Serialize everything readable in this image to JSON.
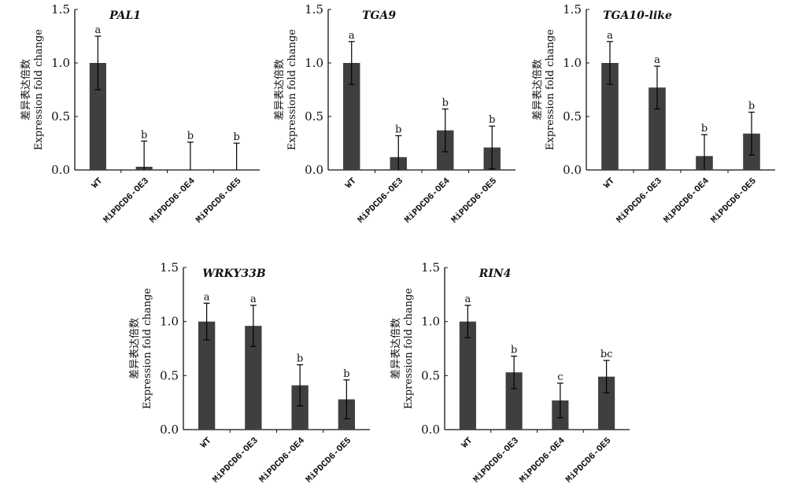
{
  "colors": {
    "bar": "#3f3f3f",
    "axis": "#111111"
  },
  "chart_data": [
    {
      "type": "bar",
      "title": "PAL1",
      "ylabel_cn": "差异表达倍数",
      "ylabel": "Expression fold change",
      "ylim": [
        0,
        1.5
      ],
      "yticks": [
        "0.0",
        "0.5",
        "1.0",
        "1.5"
      ],
      "categories": [
        "WT",
        "MiPDCD6-OE3",
        "MiPDCD6-OE4",
        "MiPDCD6-OE5"
      ],
      "values": [
        1.0,
        0.03,
        0,
        0
      ],
      "errors": [
        0.25,
        0.24,
        0.26,
        0.25
      ],
      "letters": [
        "a",
        "b",
        "b",
        "b"
      ]
    },
    {
      "type": "bar",
      "title": "TGA9",
      "ylabel_cn": "差异表达倍数",
      "ylabel": "Expression fold change",
      "ylim": [
        0,
        1.5
      ],
      "yticks": [
        "0.0",
        "0.5",
        "1.0",
        "1.5"
      ],
      "categories": [
        "WT",
        "MiPDCD6-OE3",
        "MiPDCD6-OE4",
        "MiPDCD6-OE5"
      ],
      "values": [
        1.0,
        0.12,
        0.37,
        0.21
      ],
      "errors": [
        0.2,
        0.2,
        0.2,
        0.2
      ],
      "letters": [
        "a",
        "b",
        "b",
        "b"
      ]
    },
    {
      "type": "bar",
      "title": "TGA10-like",
      "ylabel_cn": "差异表达倍数",
      "ylabel": "Expression fold change",
      "ylim": [
        0,
        1.5
      ],
      "yticks": [
        "0.0",
        "0.5",
        "1.0",
        "1.5"
      ],
      "categories": [
        "WT",
        "MiPDCD6-OE3",
        "MiPDCD6-OE4",
        "MiPDCD6-OE5"
      ],
      "values": [
        1.0,
        0.77,
        0.13,
        0.34
      ],
      "errors": [
        0.2,
        0.2,
        0.2,
        0.2
      ],
      "letters": [
        "a",
        "a",
        "b",
        "b"
      ]
    },
    {
      "type": "bar",
      "title": "WRKY33B",
      "ylabel_cn": "差异表达倍数",
      "ylabel": "Expression fold change",
      "ylim": [
        0,
        1.5
      ],
      "yticks": [
        "0.0",
        "0.5",
        "1.0",
        "1.5"
      ],
      "categories": [
        "WT",
        "MiPDCD6-OE3",
        "MiPDCD6-OE4",
        "MiPDCD6-OE5"
      ],
      "values": [
        1.0,
        0.96,
        0.41,
        0.28
      ],
      "errors": [
        0.17,
        0.19,
        0.19,
        0.18
      ],
      "letters": [
        "a",
        "a",
        "b",
        "b"
      ]
    },
    {
      "type": "bar",
      "title": "RIN4",
      "ylabel_cn": "差异表达倍数",
      "ylabel": "Expression fold change",
      "ylim": [
        0,
        1.5
      ],
      "yticks": [
        "0.0",
        "0.5",
        "1.0",
        "1.5"
      ],
      "categories": [
        "WT",
        "MiPDCD6-OE3",
        "MiPDCD6-OE4",
        "MiPDCD6-OE5"
      ],
      "values": [
        1.0,
        0.53,
        0.27,
        0.49
      ],
      "errors": [
        0.15,
        0.15,
        0.16,
        0.15
      ],
      "letters": [
        "a",
        "b",
        "c",
        "bc"
      ]
    }
  ]
}
